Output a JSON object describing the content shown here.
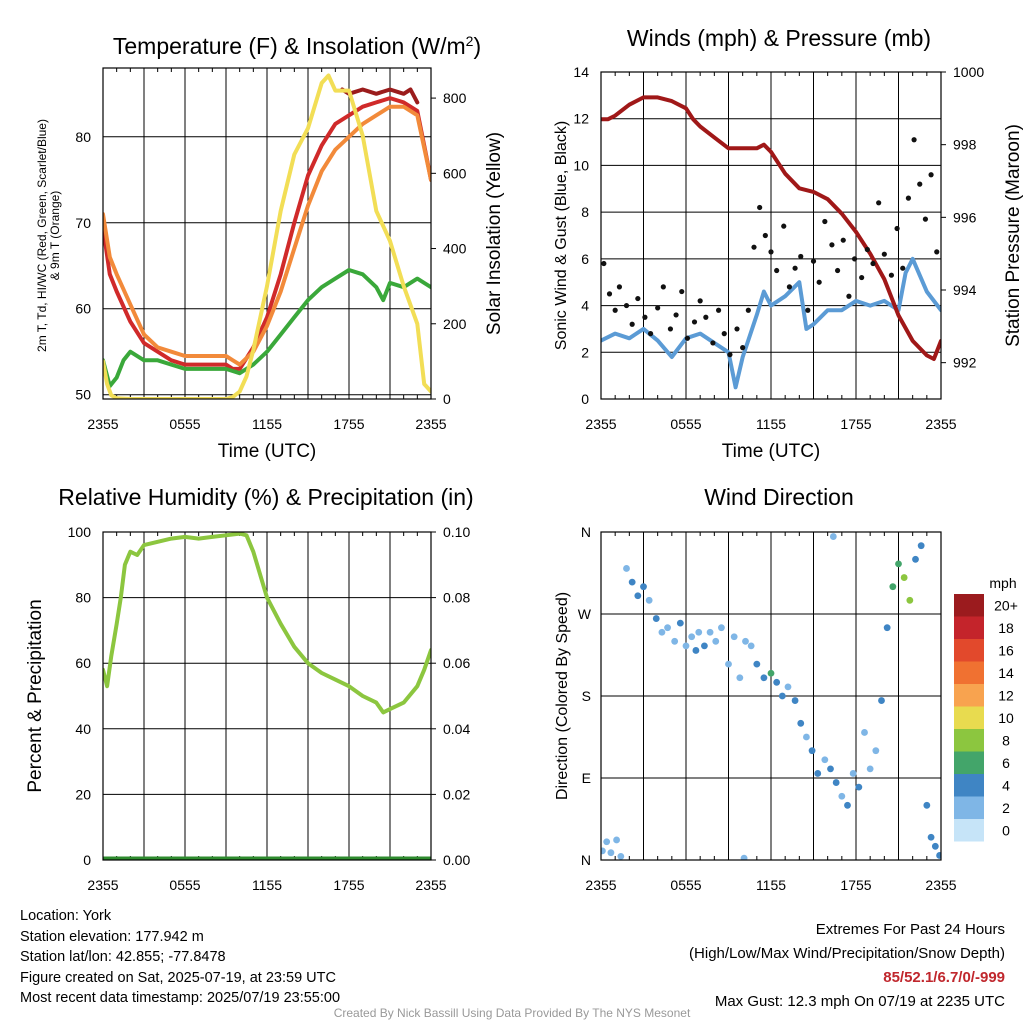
{
  "chart_data": [
    {
      "type": "line",
      "title": "Temperature (F) & Insolation (W/m²)",
      "xlabel": "Time (UTC)",
      "ylabel": "2m T, Td, HI/WC (Red, Green, Scarlet/Blue) & 9m T (Orange)",
      "ylabel_lines": [
        "2m T, Td, HI/WC (Red, Green, Scarlet/Blue)",
        "& 9m T (Orange)"
      ],
      "y2label": "Solar Insolation (Yellow)",
      "x_ticks": [
        "2355",
        "0555",
        "1155",
        "1755",
        "2355"
      ],
      "xlim": [
        0,
        24
      ],
      "ylim": [
        49.5,
        88
      ],
      "y_ticks": [
        50,
        60,
        70,
        80
      ],
      "y2lim": [
        0,
        880
      ],
      "y2_ticks": [
        0,
        200,
        400,
        600,
        800
      ],
      "grid": true,
      "series": [
        {
          "name": "2m T (Red)",
          "color": "#d02a2a",
          "axis": "left",
          "x": [
            0,
            0.5,
            1,
            2,
            3,
            4,
            5,
            6,
            7,
            8,
            9,
            9.5,
            10,
            11,
            12,
            13,
            14,
            15,
            16,
            17,
            18,
            19,
            20,
            21,
            22,
            23,
            23.5,
            24
          ],
          "y": [
            69.5,
            64,
            62,
            58.5,
            56,
            55,
            54,
            53.5,
            53.5,
            53.5,
            53.5,
            53,
            53,
            55.5,
            59,
            64,
            70,
            75.5,
            79,
            81.5,
            82.5,
            83.5,
            84,
            84.5,
            84,
            83,
            79,
            75
          ]
        },
        {
          "name": "Heat Index (Scarlet)",
          "color": "#9b1c1c",
          "axis": "left",
          "x": [
            17.5,
            18,
            19,
            20,
            21,
            22,
            22.5,
            23
          ],
          "y": [
            85.5,
            85,
            85.5,
            85,
            85.5,
            85,
            85.5,
            84
          ]
        },
        {
          "name": "9m T (Orange)",
          "color": "#f28a3a",
          "axis": "left",
          "x": [
            0,
            0.5,
            1,
            2,
            3,
            4,
            5,
            6,
            7,
            8,
            9,
            9.5,
            10,
            11,
            12,
            13,
            14,
            15,
            16,
            17,
            18,
            19,
            20,
            21,
            22,
            23,
            24
          ],
          "y": [
            71,
            66,
            64,
            60.5,
            57,
            55.5,
            55,
            54.5,
            54.5,
            54.5,
            54.5,
            54,
            53.5,
            55,
            58,
            62,
            67,
            72,
            76,
            78.5,
            80,
            81.5,
            82.5,
            83.5,
            83.5,
            82.5,
            75
          ]
        },
        {
          "name": "Dewpoint (Green)",
          "color": "#3aa83a",
          "axis": "left",
          "x": [
            0,
            0.5,
            1,
            1.5,
            2,
            3,
            4,
            5,
            6,
            7,
            8,
            9,
            10,
            11,
            12,
            13,
            14,
            15,
            16,
            17,
            18,
            19,
            20,
            20.5,
            21,
            22,
            23,
            24
          ],
          "y": [
            54,
            51,
            52,
            54,
            55,
            54,
            54,
            53.5,
            53,
            53,
            53,
            53,
            52.5,
            53.5,
            55,
            57,
            59,
            61,
            62.5,
            63.5,
            64.5,
            64,
            62.5,
            61,
            63,
            62.5,
            63.5,
            62.5
          ]
        },
        {
          "name": "Solar Insolation (Yellow)",
          "color": "#f2de56",
          "axis": "right",
          "x": [
            0,
            0.3,
            0.6,
            1,
            2,
            3,
            4,
            5,
            6,
            7,
            8,
            9,
            9.5,
            10,
            10.5,
            11,
            12,
            13,
            14,
            15,
            16,
            16.5,
            17,
            18,
            19,
            20,
            21,
            22,
            23,
            23.5,
            24
          ],
          "y": [
            100,
            40,
            10,
            2,
            0,
            0,
            0,
            0,
            0,
            0,
            0,
            0,
            5,
            20,
            60,
            130,
            300,
            500,
            650,
            720,
            840,
            860,
            820,
            820,
            700,
            500,
            420,
            300,
            200,
            40,
            20
          ]
        }
      ]
    },
    {
      "type": "line",
      "title": "Winds (mph) & Pressure (mb)",
      "xlabel": "Time (UTC)",
      "ylabel": "Sonic Wind & Gust (Blue, Black)",
      "y2label": "Station Pressure (Maroon)",
      "x_ticks": [
        "2355",
        "0555",
        "1155",
        "1755",
        "2355"
      ],
      "xlim": [
        0,
        24
      ],
      "ylim": [
        0,
        14
      ],
      "y_ticks": [
        0,
        2,
        4,
        6,
        8,
        10,
        12,
        14
      ],
      "y2lim": [
        991,
        1000
      ],
      "y2_ticks": [
        992,
        994,
        996,
        998,
        1000
      ],
      "grid": true,
      "series": [
        {
          "name": "Sonic Wind (Blue)",
          "color": "#5b9bd5",
          "axis": "left",
          "x": [
            0,
            1,
            2,
            3,
            4,
            5,
            6,
            7,
            8,
            9,
            9.5,
            10,
            11,
            11.5,
            12,
            13,
            14,
            14.5,
            15,
            16,
            17,
            18,
            19,
            20,
            21,
            21.5,
            22,
            23,
            24
          ],
          "y": [
            2.5,
            2.8,
            2.6,
            3.0,
            2.5,
            1.8,
            2.6,
            2.8,
            2.4,
            2.0,
            0.5,
            1.8,
            3.6,
            4.6,
            4.0,
            4.4,
            5.0,
            3.0,
            3.2,
            3.8,
            3.8,
            4.2,
            4.0,
            4.2,
            3.8,
            5.4,
            6.0,
            4.6,
            3.8
          ]
        },
        {
          "name": "Station Pressure (Maroon)",
          "color": "#a01818",
          "axis": "right",
          "x": [
            0,
            0.5,
            1,
            2,
            3,
            4,
            5,
            6,
            6.5,
            7,
            8,
            9,
            10,
            11,
            11.5,
            12,
            13,
            14,
            15,
            16,
            17,
            18,
            19,
            20,
            21,
            22,
            23,
            23.5,
            24
          ],
          "y": [
            998.7,
            998.7,
            998.8,
            999.1,
            999.3,
            999.3,
            999.2,
            999.0,
            998.7,
            998.5,
            998.2,
            997.9,
            997.9,
            997.9,
            998.0,
            997.8,
            997.2,
            996.8,
            996.7,
            996.5,
            996.1,
            995.6,
            995.0,
            994.3,
            993.3,
            992.6,
            992.2,
            992.1,
            992.6
          ]
        },
        {
          "name": "Gust (Black)",
          "color": "#111111",
          "axis": "left",
          "points_only": true,
          "x": [
            0.2,
            0.6,
            1.0,
            1.3,
            1.8,
            2.2,
            2.6,
            3.1,
            3.5,
            4.0,
            4.4,
            4.9,
            5.3,
            5.7,
            6.1,
            6.6,
            7.0,
            7.4,
            7.9,
            8.3,
            8.7,
            9.1,
            9.6,
            10.0,
            10.4,
            10.8,
            11.2,
            11.6,
            12.0,
            12.4,
            12.9,
            13.3,
            13.7,
            14.1,
            14.6,
            15.0,
            15.4,
            15.8,
            16.3,
            16.7,
            17.1,
            17.5,
            17.9,
            18.4,
            18.8,
            19.2,
            19.6,
            20.0,
            20.5,
            20.9,
            21.3,
            21.7,
            22.1,
            22.5,
            22.9,
            23.3,
            23.7
          ],
          "y": [
            5.8,
            4.5,
            3.8,
            4.8,
            4.0,
            3.2,
            4.3,
            3.5,
            2.8,
            3.9,
            4.8,
            3.0,
            3.6,
            4.6,
            2.6,
            3.3,
            4.2,
            3.5,
            2.4,
            3.8,
            2.8,
            1.9,
            3.0,
            2.2,
            3.8,
            6.5,
            8.2,
            7.0,
            6.3,
            5.5,
            7.4,
            4.8,
            5.6,
            6.1,
            3.8,
            5.9,
            5.0,
            7.6,
            6.6,
            5.5,
            6.8,
            4.4,
            6.0,
            5.2,
            6.4,
            5.8,
            8.4,
            6.2,
            5.3,
            7.3,
            5.6,
            8.6,
            11.1,
            9.2,
            7.7,
            9.6,
            6.3
          ]
        }
      ]
    },
    {
      "type": "line",
      "title": "Relative Humidity (%) & Precipitation (in)",
      "ylabel": "Percent & Precipitation",
      "x_ticks": [
        "2355",
        "0555",
        "1155",
        "1755",
        "2355"
      ],
      "xlim": [
        0,
        24
      ],
      "ylim": [
        0,
        100
      ],
      "y_ticks": [
        0,
        20,
        40,
        60,
        80,
        100
      ],
      "y2lim": [
        0,
        0.1
      ],
      "y2_ticks": [
        "0.00",
        "0.02",
        "0.04",
        "0.06",
        "0.08",
        "0.10"
      ],
      "grid": true,
      "series": [
        {
          "name": "Relative Humidity",
          "color": "#8cc63f",
          "axis": "left",
          "x": [
            0,
            0.3,
            0.6,
            1,
            1.3,
            1.6,
            2,
            2.5,
            3,
            4,
            5,
            6,
            7,
            8,
            9,
            10,
            10.5,
            11,
            12,
            13,
            14,
            15,
            16,
            17,
            18,
            19,
            20,
            20.5,
            21,
            22,
            23,
            23.5,
            24
          ],
          "y": [
            58,
            53,
            62,
            72,
            80,
            90,
            94,
            93,
            96,
            97,
            98,
            98.5,
            98,
            98.5,
            99,
            99.5,
            99,
            94,
            80,
            72,
            65,
            60,
            57,
            55,
            53,
            50,
            48,
            45,
            46,
            48,
            53,
            58,
            64
          ]
        },
        {
          "name": "Precipitation",
          "color": "#2e8b2e",
          "axis": "right",
          "x": [
            0,
            24
          ],
          "y": [
            0,
            0
          ]
        }
      ]
    },
    {
      "type": "scatter",
      "title": "Wind Direction",
      "ylabel": "Direction (Colored By Speed)",
      "x_ticks": [
        "2355",
        "0555",
        "1155",
        "1755",
        "2355"
      ],
      "xlim": [
        0,
        24
      ],
      "y_ticks": [
        "N",
        "E",
        "S",
        "W",
        "N"
      ],
      "ylim": [
        0,
        360
      ],
      "grid": true,
      "colorbar": {
        "title": "mph",
        "labels": [
          "20+",
          "18",
          "16",
          "14",
          "12",
          "10",
          "8",
          "6",
          "4",
          "2",
          "0"
        ],
        "colors": [
          "#9b1b1e",
          "#c4242b",
          "#e2492c",
          "#f07131",
          "#f8a34f",
          "#e8db4f",
          "#8cc63f",
          "#43a56a",
          "#3f85c4",
          "#7fb6e6",
          "#c6e4f8"
        ]
      },
      "points": [
        {
          "x": 0.1,
          "y": 10,
          "speed": 2
        },
        {
          "x": 0.4,
          "y": 20,
          "speed": 2
        },
        {
          "x": 0.7,
          "y": 8,
          "speed": 2
        },
        {
          "x": 1.1,
          "y": 22,
          "speed": 1
        },
        {
          "x": 1.4,
          "y": 4,
          "speed": 1
        },
        {
          "x": 1.8,
          "y": 320,
          "speed": 2
        },
        {
          "x": 2.2,
          "y": 305,
          "speed": 3
        },
        {
          "x": 2.6,
          "y": 290,
          "speed": 4
        },
        {
          "x": 3.0,
          "y": 300,
          "speed": 3
        },
        {
          "x": 3.4,
          "y": 285,
          "speed": 2
        },
        {
          "x": 3.9,
          "y": 265,
          "speed": 3
        },
        {
          "x": 4.3,
          "y": 250,
          "speed": 2
        },
        {
          "x": 4.7,
          "y": 255,
          "speed": 1
        },
        {
          "x": 5.2,
          "y": 240,
          "speed": 2
        },
        {
          "x": 5.6,
          "y": 260,
          "speed": 3
        },
        {
          "x": 6.0,
          "y": 235,
          "speed": 2
        },
        {
          "x": 6.4,
          "y": 245,
          "speed": 1
        },
        {
          "x": 6.9,
          "y": 250,
          "speed": 2
        },
        {
          "x": 7.3,
          "y": 235,
          "speed": 3
        },
        {
          "x": 7.7,
          "y": 250,
          "speed": 2
        },
        {
          "x": 8.1,
          "y": 240,
          "speed": 1
        },
        {
          "x": 8.5,
          "y": 255,
          "speed": 1
        },
        {
          "x": 9.0,
          "y": 215,
          "speed": 2
        },
        {
          "x": 9.4,
          "y": 245,
          "speed": 1
        },
        {
          "x": 9.8,
          "y": 200,
          "speed": 1
        },
        {
          "x": 10.2,
          "y": 240,
          "speed": 2
        },
        {
          "x": 10.6,
          "y": 235,
          "speed": 1
        },
        {
          "x": 11.0,
          "y": 215,
          "speed": 3
        },
        {
          "x": 11.5,
          "y": 200,
          "speed": 4
        },
        {
          "x": 12.0,
          "y": 205,
          "speed": 5
        },
        {
          "x": 12.4,
          "y": 195,
          "speed": 4
        },
        {
          "x": 12.8,
          "y": 180,
          "speed": 3
        },
        {
          "x": 13.2,
          "y": 190,
          "speed": 2
        },
        {
          "x": 13.7,
          "y": 175,
          "speed": 3
        },
        {
          "x": 14.1,
          "y": 150,
          "speed": 3
        },
        {
          "x": 14.5,
          "y": 135,
          "speed": 2
        },
        {
          "x": 14.9,
          "y": 120,
          "speed": 3
        },
        {
          "x": 15.3,
          "y": 95,
          "speed": 4
        },
        {
          "x": 15.8,
          "y": 110,
          "speed": 2
        },
        {
          "x": 16.2,
          "y": 100,
          "speed": 4
        },
        {
          "x": 16.6,
          "y": 85,
          "speed": 3
        },
        {
          "x": 17.0,
          "y": 70,
          "speed": 2
        },
        {
          "x": 17.4,
          "y": 60,
          "speed": 4
        },
        {
          "x": 17.8,
          "y": 95,
          "speed": 2
        },
        {
          "x": 18.2,
          "y": 80,
          "speed": 3
        },
        {
          "x": 18.6,
          "y": 140,
          "speed": 2
        },
        {
          "x": 19.0,
          "y": 100,
          "speed": 2
        },
        {
          "x": 19.4,
          "y": 120,
          "speed": 2
        },
        {
          "x": 19.8,
          "y": 175,
          "speed": 3
        },
        {
          "x": 20.2,
          "y": 255,
          "speed": 3
        },
        {
          "x": 20.6,
          "y": 300,
          "speed": 5
        },
        {
          "x": 21.0,
          "y": 325,
          "speed": 6
        },
        {
          "x": 21.4,
          "y": 310,
          "speed": 7
        },
        {
          "x": 21.8,
          "y": 285,
          "speed": 7
        },
        {
          "x": 22.2,
          "y": 330,
          "speed": 3
        },
        {
          "x": 22.6,
          "y": 345,
          "speed": 4
        },
        {
          "x": 23.0,
          "y": 60,
          "speed": 3
        },
        {
          "x": 23.3,
          "y": 25,
          "speed": 4
        },
        {
          "x": 23.6,
          "y": 15,
          "speed": 4
        },
        {
          "x": 23.9,
          "y": 5,
          "speed": 4
        },
        {
          "x": 16.4,
          "y": 355,
          "speed": 2
        },
        {
          "x": 10.1,
          "y": 2,
          "speed": 1
        },
        {
          "x": 6.7,
          "y": 230,
          "speed": 4
        }
      ]
    }
  ],
  "info": {
    "location": "Location: York",
    "elevation": "Station elevation: 177.942 m",
    "latlon": "Station lat/lon: 42.855; -77.8478",
    "created": "Figure created on Sat, 2025-07-19, at 23:59 UTC",
    "recent": "Most recent data timestamp: 2025/07/19 23:55:00"
  },
  "extremes": {
    "title": "Extremes For Past 24 Hours",
    "subtitle": "(High/Low/Max Wind/Precipitation/Snow Depth)",
    "values": "85/52.1/6.7/0/-999",
    "gust": "Max Gust: 12.3 mph On 07/19 at 2235 UTC"
  },
  "credit": "Created By Nick Bassill Using Data Provided By The NYS Mesonet"
}
